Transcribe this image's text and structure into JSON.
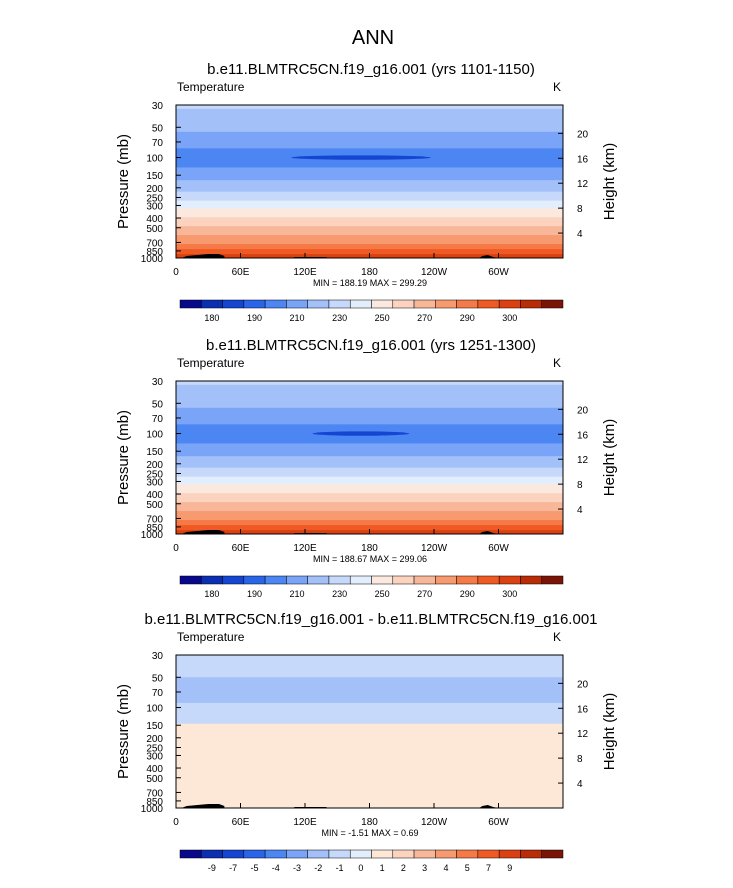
{
  "title": "ANN",
  "palette_t": [
    "#08088a",
    "#0a2fb0",
    "#1446d2",
    "#2a64e8",
    "#4c86f2",
    "#7aa4f7",
    "#a3c0f9",
    "#c6d9fb",
    "#e3eefd",
    "#fbe9df",
    "#fbd3bf",
    "#f9b79a",
    "#f79a70",
    "#f57a48",
    "#ef5a24",
    "#db4010",
    "#b82c08",
    "#7a1407"
  ],
  "palette_d": [
    "#08088a",
    "#0a2fb0",
    "#1446d2",
    "#2a64e8",
    "#4c86f2",
    "#7aa4f7",
    "#a3c0f9",
    "#c6d9fb",
    "#e3eefd",
    "#fde8d8",
    "#fbd3bf",
    "#f9b79a",
    "#f79a70",
    "#f57a48",
    "#ef5a24",
    "#db4010",
    "#b82c08",
    "#7a1407"
  ],
  "chart_data": [
    {
      "type": "heatmap",
      "title": "b.e11.BLMTRC5CN.f19_g16.001 (yrs 1101-1150)",
      "left_label": "Temperature",
      "right_label": "K",
      "ylabel": "Pressure (mb)",
      "ylabel_right": "Height (km)",
      "xticks": [
        {
          "lon": 0,
          "label": "0"
        },
        {
          "lon": 60,
          "label": "60E"
        },
        {
          "lon": 120,
          "label": "120E"
        },
        {
          "lon": 180,
          "label": "180"
        },
        {
          "lon": 240,
          "label": "120W"
        },
        {
          "lon": 300,
          "label": "60W"
        }
      ],
      "xlim": [
        0,
        360
      ],
      "ylim_mb": [
        1000,
        30
      ],
      "yticks_mb": [
        "30",
        "50",
        "70",
        "100",
        "150",
        "200",
        "250",
        "300",
        "400",
        "500",
        "700",
        "850",
        "1000"
      ],
      "yticks_km": [
        "4",
        "8",
        "12",
        "16",
        "20"
      ],
      "stats": "MIN = 188.19  MAX = 299.29",
      "colorbar_labels": [
        "180",
        "190",
        "210",
        "230",
        "250",
        "270",
        "290",
        "300"
      ],
      "profile": [
        {
          "p": 30,
          "v": 222
        },
        {
          "p": 40,
          "v": 216
        },
        {
          "p": 50,
          "v": 212
        },
        {
          "p": 60,
          "v": 208
        },
        {
          "p": 70,
          "v": 204
        },
        {
          "p": 85,
          "v": 199
        },
        {
          "p": 100,
          "v": 196
        },
        {
          "p": 125,
          "v": 200
        },
        {
          "p": 150,
          "v": 206
        },
        {
          "p": 200,
          "v": 216
        },
        {
          "p": 250,
          "v": 226
        },
        {
          "p": 300,
          "v": 236
        },
        {
          "p": 400,
          "v": 251
        },
        {
          "p": 500,
          "v": 262
        },
        {
          "p": 700,
          "v": 278
        },
        {
          "p": 850,
          "v": 287
        },
        {
          "p": 1000,
          "v": 295
        }
      ],
      "anomaly": {
        "center_lon": 172,
        "half_width_lon": 65,
        "level_mb": 100,
        "value": 188.5
      }
    },
    {
      "type": "heatmap",
      "title": "b.e11.BLMTRC5CN.f19_g16.001 (yrs 1251-1300)",
      "left_label": "Temperature",
      "right_label": "K",
      "ylabel": "Pressure (mb)",
      "ylabel_right": "Height (km)",
      "xticks": [
        {
          "lon": 0,
          "label": "0"
        },
        {
          "lon": 60,
          "label": "60E"
        },
        {
          "lon": 120,
          "label": "120E"
        },
        {
          "lon": 180,
          "label": "180"
        },
        {
          "lon": 240,
          "label": "120W"
        },
        {
          "lon": 300,
          "label": "60W"
        }
      ],
      "xlim": [
        0,
        360
      ],
      "ylim_mb": [
        1000,
        30
      ],
      "yticks_mb": [
        "30",
        "50",
        "70",
        "100",
        "150",
        "200",
        "250",
        "300",
        "400",
        "500",
        "700",
        "850",
        "1000"
      ],
      "yticks_km": [
        "4",
        "8",
        "12",
        "16",
        "20"
      ],
      "stats": "MIN = 188.67  MAX = 299.06",
      "colorbar_labels": [
        "180",
        "190",
        "210",
        "230",
        "250",
        "270",
        "290",
        "300"
      ],
      "profile": [
        {
          "p": 30,
          "v": 222
        },
        {
          "p": 40,
          "v": 216
        },
        {
          "p": 50,
          "v": 212
        },
        {
          "p": 60,
          "v": 208
        },
        {
          "p": 70,
          "v": 204
        },
        {
          "p": 85,
          "v": 199
        },
        {
          "p": 100,
          "v": 196
        },
        {
          "p": 125,
          "v": 200
        },
        {
          "p": 150,
          "v": 206
        },
        {
          "p": 200,
          "v": 216
        },
        {
          "p": 250,
          "v": 226
        },
        {
          "p": 300,
          "v": 236
        },
        {
          "p": 400,
          "v": 251
        },
        {
          "p": 500,
          "v": 262
        },
        {
          "p": 700,
          "v": 278
        },
        {
          "p": 850,
          "v": 287
        },
        {
          "p": 1000,
          "v": 295
        }
      ],
      "anomaly": {
        "center_lon": 172,
        "half_width_lon": 45,
        "level_mb": 100,
        "value": 189
      }
    },
    {
      "type": "heatmap",
      "title": "b.e11.BLMTRC5CN.f19_g16.001 - b.e11.BLMTRC5CN.f19_g16.001",
      "left_label": "Temperature",
      "right_label": "K",
      "ylabel": "Pressure (mb)",
      "ylabel_right": "Height (km)",
      "xticks": [
        {
          "lon": 0,
          "label": "0"
        },
        {
          "lon": 60,
          "label": "60E"
        },
        {
          "lon": 120,
          "label": "120E"
        },
        {
          "lon": 180,
          "label": "180"
        },
        {
          "lon": 240,
          "label": "120W"
        },
        {
          "lon": 300,
          "label": "60W"
        }
      ],
      "xlim": [
        0,
        360
      ],
      "ylim_mb": [
        1000,
        30
      ],
      "yticks_mb": [
        "30",
        "50",
        "70",
        "100",
        "150",
        "200",
        "250",
        "300",
        "400",
        "500",
        "700",
        "850",
        "1000"
      ],
      "yticks_km": [
        "4",
        "8",
        "12",
        "16",
        "20"
      ],
      "stats": "MIN =  -1.51  MAX =   0.69",
      "colorbar_labels": [
        "-9",
        "-7",
        "-5",
        "-4",
        "-3",
        "-2",
        "-1",
        "0",
        "1",
        "2",
        "3",
        "4",
        "5",
        "7",
        "9"
      ],
      "diff_bands": [
        {
          "p_top": 30,
          "p_bottom": 50,
          "color": "#c6d9fb"
        },
        {
          "p_top": 50,
          "p_bottom": 90,
          "color": "#a3c0f9"
        },
        {
          "p_top": 90,
          "p_bottom": 145,
          "color": "#c6d9fb"
        },
        {
          "p_top": 145,
          "p_bottom": 1000,
          "color": "#fde8d8"
        }
      ]
    }
  ]
}
